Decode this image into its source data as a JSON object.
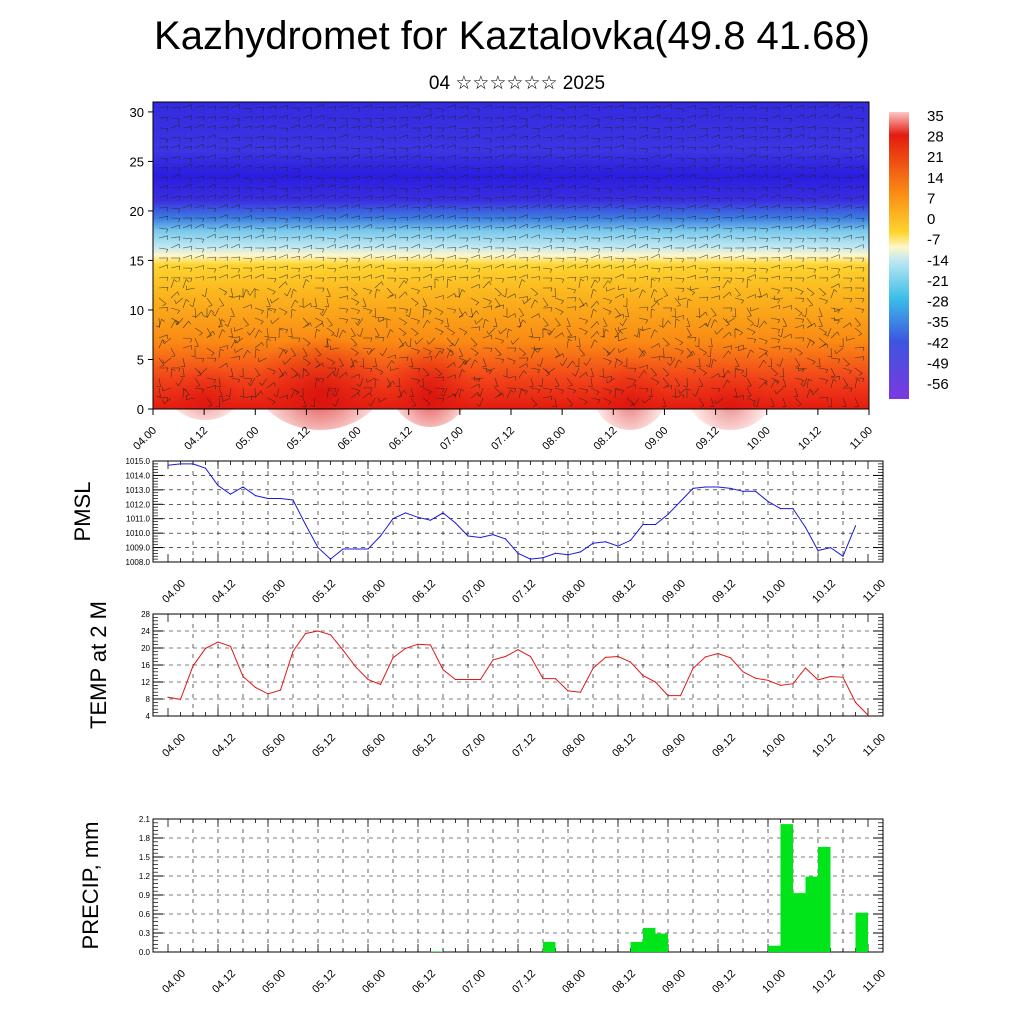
{
  "title": "Kazhydromet for Kaztalovka(49.8 41.68)",
  "subtitle": "04 ☆☆☆☆☆☆ 2025",
  "time_labels": [
    "04.00",
    "04.12",
    "05.00",
    "05.12",
    "06.00",
    "06.12",
    "07.00",
    "07.12",
    "08.00",
    "08.12",
    "09.00",
    "09.12",
    "10.00",
    "10.12",
    "11.00"
  ],
  "chart_data": [
    {
      "type": "heatmap",
      "name": "upper-air-section",
      "y_ticks": [
        0,
        5,
        10,
        15,
        20,
        25,
        30
      ],
      "ylim": [
        0,
        31
      ],
      "colorbar_labels": [
        "35",
        "28",
        "21",
        "14",
        "7",
        "0",
        "-7",
        "-14",
        "-21",
        "-28",
        "-35",
        "-42",
        "-49",
        "-56"
      ],
      "colorbar_range": [
        -63,
        42
      ],
      "colors": {
        "hot": "#e41b10",
        "warm": "#fa8a14",
        "mild": "#fed530",
        "cool": "#bde7f2",
        "cold": "#3d7fe0",
        "freezing": "#2b1de0"
      }
    },
    {
      "type": "line",
      "ylabel": "PMSL",
      "y_ticks": [
        "1008.0",
        "1009.0",
        "1010.0",
        "1011.0",
        "1012.0",
        "1013.0",
        "1014.0",
        "1015.0"
      ],
      "ylim": [
        1008,
        1015
      ],
      "color": "#1a1adc",
      "x": [
        0,
        3,
        6,
        9,
        12,
        15,
        18,
        21,
        24,
        27,
        30,
        33,
        36,
        39,
        42,
        45,
        48,
        51,
        54,
        57,
        60,
        63,
        66,
        69,
        72,
        75,
        78,
        81,
        84,
        87,
        90,
        93,
        96,
        99,
        102,
        105,
        108,
        111,
        114,
        117,
        120,
        123,
        126,
        129,
        132,
        135,
        138,
        141,
        144,
        147,
        150,
        153,
        156,
        159,
        162,
        165
      ],
      "values": [
        1014.7,
        1014.8,
        1014.8,
        1014.5,
        1013.3,
        1012.7,
        1013.2,
        1012.6,
        1012.4,
        1012.4,
        1012.3,
        1010.6,
        1009.0,
        1008.2,
        1008.9,
        1008.9,
        1008.9,
        1009.8,
        1011.0,
        1011.4,
        1011.1,
        1010.9,
        1011.4,
        1010.7,
        1009.8,
        1009.7,
        1009.9,
        1009.6,
        1008.6,
        1008.2,
        1008.3,
        1008.6,
        1008.5,
        1008.7,
        1009.3,
        1009.4,
        1009.1,
        1009.5,
        1010.6,
        1010.6,
        1011.3,
        1012.2,
        1013.1,
        1013.2,
        1013.2,
        1013.1,
        1012.9,
        1012.9,
        1012.2,
        1011.7,
        1011.7,
        1010.4,
        1008.8,
        1009.0,
        1008.4,
        1010.5
      ]
    },
    {
      "type": "line",
      "ylabel": "TEMP at 2 M",
      "y_ticks": [
        "4",
        "8",
        "12",
        "16",
        "20",
        "24",
        "28"
      ],
      "ylim": [
        4,
        28
      ],
      "color": "#e01818",
      "x": [
        0,
        3,
        6,
        9,
        12,
        15,
        18,
        21,
        24,
        27,
        30,
        33,
        36,
        39,
        42,
        45,
        48,
        51,
        54,
        57,
        60,
        63,
        66,
        69,
        72,
        75,
        78,
        81,
        84,
        87,
        90,
        93,
        96,
        99,
        102,
        105,
        108,
        111,
        114,
        117,
        120,
        123,
        126,
        129,
        132,
        135,
        138,
        141,
        144,
        147,
        150,
        153,
        156,
        159,
        162,
        165,
        168
      ],
      "values": [
        8.4,
        7.9,
        15.8,
        19.9,
        21.4,
        20.4,
        13.3,
        10.7,
        9.2,
        10.1,
        19.2,
        23.4,
        24.0,
        23.1,
        19.5,
        15.6,
        12.6,
        11.4,
        17.7,
        19.9,
        20.9,
        20.7,
        14.9,
        12.6,
        12.6,
        12.6,
        17.2,
        18.0,
        19.6,
        18.0,
        12.8,
        12.8,
        9.9,
        9.6,
        15.2,
        17.8,
        18.0,
        16.7,
        13.5,
        12.0,
        8.8,
        8.8,
        15.2,
        17.9,
        18.7,
        17.7,
        14.4,
        12.9,
        12.4,
        11.2,
        11.6,
        15.3,
        12.5,
        13.3,
        13.1,
        7.2,
        4.2
      ]
    },
    {
      "type": "bar",
      "ylabel": "PRECIP, mm",
      "y_ticks": [
        "0.0",
        "0.3",
        "0.6",
        "0.9",
        "1.2",
        "1.5",
        "1.8",
        "2.1"
      ],
      "ylim": [
        0,
        2.1
      ],
      "color": "#00e519",
      "x": [
        63,
        90,
        111,
        114,
        117,
        144,
        147,
        150,
        153,
        156,
        159,
        165
      ],
      "values": [
        0.01,
        0.16,
        0.16,
        0.38,
        0.29,
        0.1,
        2.02,
        0.93,
        1.19,
        1.66,
        0.0,
        0.62
      ]
    }
  ]
}
